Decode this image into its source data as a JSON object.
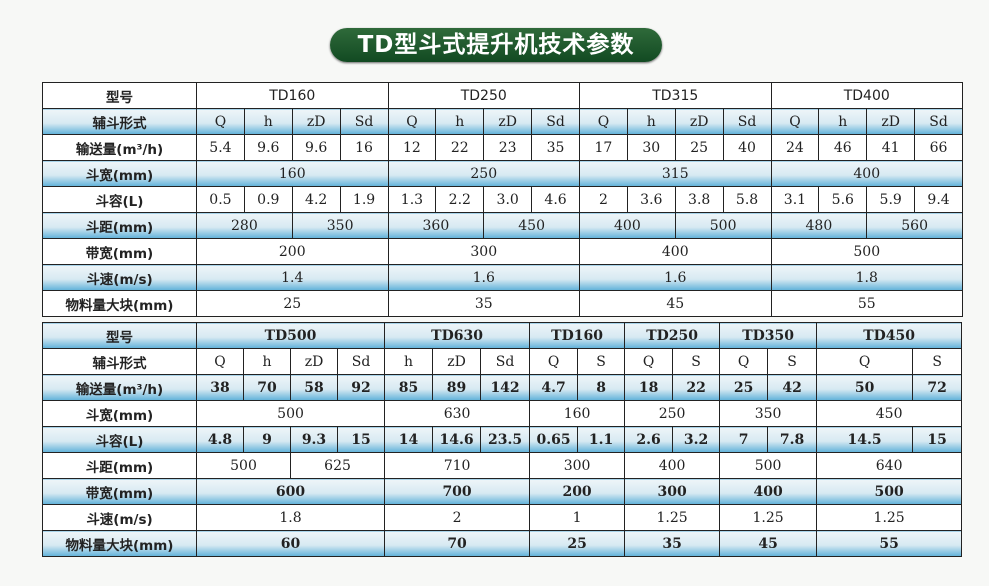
{
  "title": "TD型斗式提升机技术参数",
  "colors": {
    "title_bg": "#1f5a2c",
    "row_shade": "#5fb1d9",
    "border": "#222222"
  },
  "tables": [
    {
      "rows": [
        {
          "shaded": false,
          "label": "型号",
          "cells": [
            {
              "t": "TD160",
              "s": 4
            },
            {
              "t": "TD250",
              "s": 4
            },
            {
              "t": "TD315",
              "s": 4
            },
            {
              "t": "TD400",
              "s": 4
            }
          ]
        },
        {
          "shaded": true,
          "label": "辅斗形式",
          "cells": [
            {
              "t": "Q"
            },
            {
              "t": "h"
            },
            {
              "t": "zD"
            },
            {
              "t": "Sd"
            },
            {
              "t": "Q"
            },
            {
              "t": "h"
            },
            {
              "t": "zD"
            },
            {
              "t": "Sd"
            },
            {
              "t": "Q"
            },
            {
              "t": "h"
            },
            {
              "t": "zD"
            },
            {
              "t": "Sd"
            },
            {
              "t": "Q"
            },
            {
              "t": "h"
            },
            {
              "t": "zD"
            },
            {
              "t": "Sd"
            }
          ]
        },
        {
          "shaded": false,
          "label": "输送量(m³/h)",
          "cells": [
            {
              "t": "5.4"
            },
            {
              "t": "9.6"
            },
            {
              "t": "9.6"
            },
            {
              "t": "16"
            },
            {
              "t": "12"
            },
            {
              "t": "22"
            },
            {
              "t": "23"
            },
            {
              "t": "35"
            },
            {
              "t": "17"
            },
            {
              "t": "30"
            },
            {
              "t": "25"
            },
            {
              "t": "40"
            },
            {
              "t": "24"
            },
            {
              "t": "46"
            },
            {
              "t": "41"
            },
            {
              "t": "66"
            }
          ]
        },
        {
          "shaded": true,
          "label": "斗宽(mm)",
          "cells": [
            {
              "t": "160",
              "s": 4
            },
            {
              "t": "250",
              "s": 4
            },
            {
              "t": "315",
              "s": 4
            },
            {
              "t": "400",
              "s": 4
            }
          ]
        },
        {
          "shaded": false,
          "label": "斗容(L)",
          "cells": [
            {
              "t": "0.5"
            },
            {
              "t": "0.9"
            },
            {
              "t": "4.2"
            },
            {
              "t": "1.9"
            },
            {
              "t": "1.3"
            },
            {
              "t": "2.2"
            },
            {
              "t": "3.0"
            },
            {
              "t": "4.6"
            },
            {
              "t": "2"
            },
            {
              "t": "3.6"
            },
            {
              "t": "3.8"
            },
            {
              "t": "5.8"
            },
            {
              "t": "3.1"
            },
            {
              "t": "5.6"
            },
            {
              "t": "5.9"
            },
            {
              "t": "9.4"
            }
          ]
        },
        {
          "shaded": true,
          "label": "斗距(mm)",
          "cells": [
            {
              "t": "280",
              "s": 2
            },
            {
              "t": "350",
              "s": 2
            },
            {
              "t": "360",
              "s": 2
            },
            {
              "t": "450",
              "s": 2
            },
            {
              "t": "400",
              "s": 2
            },
            {
              "t": "500",
              "s": 2
            },
            {
              "t": "480",
              "s": 2
            },
            {
              "t": "560",
              "s": 2
            }
          ]
        },
        {
          "shaded": false,
          "label": "带宽(mm)",
          "cells": [
            {
              "t": "200",
              "s": 4
            },
            {
              "t": "300",
              "s": 4
            },
            {
              "t": "400",
              "s": 4
            },
            {
              "t": "500",
              "s": 4
            }
          ]
        },
        {
          "shaded": true,
          "label": "斗速(m/s)",
          "cells": [
            {
              "t": "1.4",
              "s": 4
            },
            {
              "t": "1.6",
              "s": 4
            },
            {
              "t": "1.6",
              "s": 4
            },
            {
              "t": "1.8",
              "s": 4
            }
          ]
        },
        {
          "shaded": false,
          "label": "物料量大块(mm)",
          "cells": [
            {
              "t": "25",
              "s": 4
            },
            {
              "t": "35",
              "s": 4
            },
            {
              "t": "45",
              "s": 4
            },
            {
              "t": "55",
              "s": 4
            }
          ]
        }
      ]
    },
    {
      "rows": [
        {
          "shaded": true,
          "label": "型号",
          "cells": [
            {
              "t": "TD500",
              "s": 4
            },
            {
              "t": "TD630",
              "s": 3
            },
            {
              "t": "TD160",
              "s": 2
            },
            {
              "t": "TD250",
              "s": 2
            },
            {
              "t": "TD350",
              "s": 2
            },
            {
              "t": "TD450",
              "s": 2
            }
          ]
        },
        {
          "shaded": false,
          "label": "辅斗形式",
          "cells": [
            {
              "t": "Q"
            },
            {
              "t": "h"
            },
            {
              "t": "zD"
            },
            {
              "t": "Sd"
            },
            {
              "t": "h"
            },
            {
              "t": "zD"
            },
            {
              "t": "Sd"
            },
            {
              "t": "Q"
            },
            {
              "t": "S"
            },
            {
              "t": "Q"
            },
            {
              "t": "S"
            },
            {
              "t": "Q"
            },
            {
              "t": "S"
            },
            {
              "t": "Q"
            },
            {
              "t": "S"
            }
          ]
        },
        {
          "shaded": true,
          "label": "输送量(m³/h)",
          "cells": [
            {
              "t": "38"
            },
            {
              "t": "70"
            },
            {
              "t": "58"
            },
            {
              "t": "92"
            },
            {
              "t": "85"
            },
            {
              "t": "89"
            },
            {
              "t": "142"
            },
            {
              "t": "4.7"
            },
            {
              "t": "8"
            },
            {
              "t": "18"
            },
            {
              "t": "22"
            },
            {
              "t": "25"
            },
            {
              "t": "42"
            },
            {
              "t": "50"
            },
            {
              "t": "72"
            }
          ]
        },
        {
          "shaded": false,
          "label": "斗宽(mm)",
          "cells": [
            {
              "t": "500",
              "s": 4
            },
            {
              "t": "630",
              "s": 3
            },
            {
              "t": "160",
              "s": 2
            },
            {
              "t": "250",
              "s": 2
            },
            {
              "t": "350",
              "s": 2
            },
            {
              "t": "450",
              "s": 2
            }
          ]
        },
        {
          "shaded": true,
          "label": "斗容(L)",
          "cells": [
            {
              "t": "4.8"
            },
            {
              "t": "9"
            },
            {
              "t": "9.3"
            },
            {
              "t": "15"
            },
            {
              "t": "14"
            },
            {
              "t": "14.6"
            },
            {
              "t": "23.5"
            },
            {
              "t": "0.65"
            },
            {
              "t": "1.1"
            },
            {
              "t": "2.6"
            },
            {
              "t": "3.2"
            },
            {
              "t": "7"
            },
            {
              "t": "7.8"
            },
            {
              "t": "14.5"
            },
            {
              "t": "15"
            }
          ]
        },
        {
          "shaded": false,
          "label": "斗距(mm)",
          "cells": [
            {
              "t": "500",
              "s": 2
            },
            {
              "t": "625",
              "s": 2
            },
            {
              "t": "710",
              "s": 3
            },
            {
              "t": "300",
              "s": 2
            },
            {
              "t": "400",
              "s": 2
            },
            {
              "t": "500",
              "s": 2
            },
            {
              "t": "640",
              "s": 2
            }
          ]
        },
        {
          "shaded": true,
          "label": "带宽(mm)",
          "cells": [
            {
              "t": "600",
              "s": 4
            },
            {
              "t": "700",
              "s": 3
            },
            {
              "t": "200",
              "s": 2
            },
            {
              "t": "300",
              "s": 2
            },
            {
              "t": "400",
              "s": 2
            },
            {
              "t": "500",
              "s": 2
            }
          ]
        },
        {
          "shaded": false,
          "label": "斗速(m/s)",
          "cells": [
            {
              "t": "1.8",
              "s": 4
            },
            {
              "t": "2",
              "s": 3
            },
            {
              "t": "1",
              "s": 2
            },
            {
              "t": "1.25",
              "s": 2
            },
            {
              "t": "1.25",
              "s": 2
            },
            {
              "t": "1.25",
              "s": 2
            }
          ]
        },
        {
          "shaded": true,
          "label": "物料量大块(mm)",
          "cells": [
            {
              "t": "60",
              "s": 4
            },
            {
              "t": "70",
              "s": 3
            },
            {
              "t": "25",
              "s": 2
            },
            {
              "t": "35",
              "s": 2
            },
            {
              "t": "45",
              "s": 2
            },
            {
              "t": "55",
              "s": 2
            }
          ]
        }
      ]
    }
  ]
}
